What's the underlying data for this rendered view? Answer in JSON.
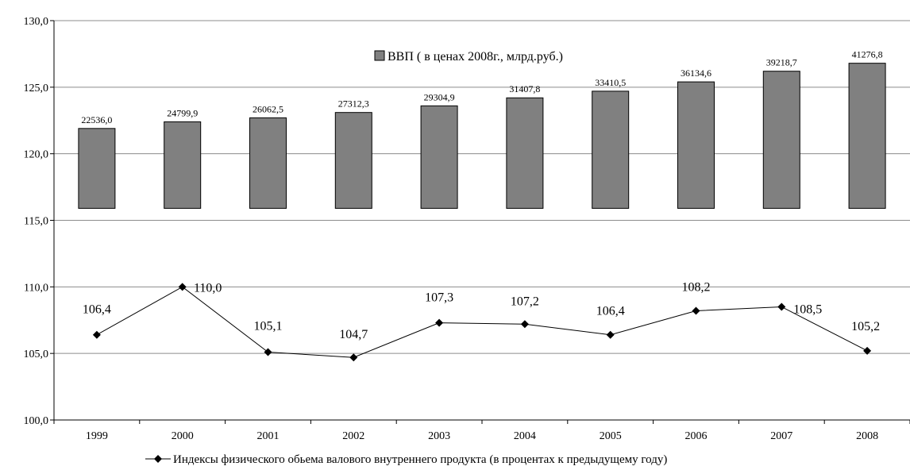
{
  "chart_data": {
    "type": "bar+line",
    "categories": [
      "1999",
      "2000",
      "2001",
      "2002",
      "2003",
      "2004",
      "2005",
      "2006",
      "2007",
      "2008"
    ],
    "yaxis": {
      "ylim": [
        100,
        130
      ],
      "ticks": [
        "100,0",
        "105,0",
        "110,0",
        "115,0",
        "120,0",
        "125,0",
        "130,0"
      ],
      "tick_values": [
        100,
        105,
        110,
        115,
        120,
        125,
        130
      ],
      "grid": true
    },
    "series": [
      {
        "name": "ВВП ( в ценах 2008г., млрд.руб.)",
        "kind": "bar",
        "color": "#808080",
        "values": [
          22536.0,
          24799.9,
          26062.5,
          27312.3,
          29304.9,
          31407.8,
          33410.5,
          36134.6,
          39218.7,
          41276.8
        ],
        "labels": [
          "22536,0",
          "24799,9",
          "26062,5",
          "27312,3",
          "29304,9",
          "31407,8",
          "33410,5",
          "36134,6",
          "39218,7",
          "41276,8"
        ],
        "axis_base": 115.9,
        "axis_tops": [
          121.9,
          122.4,
          122.7,
          123.1,
          123.6,
          124.2,
          124.7,
          125.4,
          126.2,
          126.8
        ]
      },
      {
        "name": "Индексы физического обьема валового внутреннего продукта (в процентах к предыдущему году)",
        "kind": "line",
        "color": "#000000",
        "values": [
          106.4,
          110.0,
          105.1,
          104.7,
          107.3,
          107.2,
          106.4,
          108.2,
          108.5,
          105.2
        ],
        "labels": [
          "106,4",
          "110,0",
          "105,1",
          "104,7",
          "107,3",
          "107,2",
          "106,4",
          "108,2",
          "108,5",
          "105,2"
        ]
      }
    ],
    "legend": {
      "bar_position": "top-center",
      "line_position": "bottom"
    }
  }
}
